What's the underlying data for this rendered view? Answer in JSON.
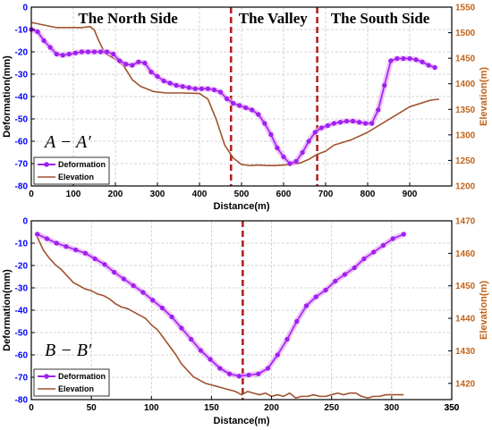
{
  "colors": {
    "deformation": "#a020f0",
    "deformation_glow": "#e6a8f5",
    "elevation": "#a0522d",
    "divider": "#b22222",
    "left_axis": "#0000ff",
    "right_axis": "#c0631a",
    "grid": "#c8c8c8"
  },
  "chart_data": [
    {
      "id": "AA",
      "type": "line",
      "section_label": "A − A′",
      "xlabel": "Distance(m)",
      "ylabel_left": "Deformation(mm)",
      "ylabel_right": "Elevation(m)",
      "xlim": [
        0,
        1000
      ],
      "ylim_left": [
        -80,
        0
      ],
      "ylim_right": [
        1200,
        1550
      ],
      "xticks": [
        0,
        100,
        200,
        300,
        400,
        500,
        600,
        700,
        800,
        900
      ],
      "yticks_left": [
        0,
        -10,
        -20,
        -30,
        -40,
        -50,
        -60,
        -70,
        -80
      ],
      "yticks_right": [
        1200,
        1250,
        1300,
        1350,
        1400,
        1450,
        1500,
        1550
      ],
      "grid": true,
      "legend": {
        "position": "bottom-left",
        "entries": [
          "Deformation",
          "Elevation"
        ]
      },
      "region_labels": [
        {
          "text": "The North Side",
          "x": 230
        },
        {
          "text": "The Valley",
          "x": 575
        },
        {
          "text": "The South Side",
          "x": 830
        }
      ],
      "dividers": [
        475,
        680
      ],
      "series": [
        {
          "name": "Deformation",
          "axis": "left",
          "x": [
            0,
            15,
            30,
            45,
            60,
            75,
            90,
            105,
            120,
            135,
            150,
            165,
            180,
            195,
            210,
            225,
            240,
            255,
            270,
            285,
            300,
            315,
            330,
            345,
            360,
            375,
            390,
            405,
            420,
            435,
            450,
            465,
            480,
            495,
            510,
            525,
            540,
            555,
            570,
            585,
            600,
            615,
            630,
            645,
            660,
            675,
            690,
            705,
            720,
            735,
            750,
            765,
            780,
            795,
            810,
            825,
            840,
            855,
            870,
            885,
            900,
            915,
            930,
            945,
            960
          ],
          "values": [
            -10,
            -11,
            -15,
            -18,
            -21,
            -21.5,
            -21,
            -20.5,
            -20,
            -20,
            -20,
            -20,
            -20,
            -21,
            -24,
            -25.5,
            -26,
            -24.5,
            -25,
            -29,
            -31,
            -33,
            -34,
            -35,
            -35.5,
            -36,
            -36.5,
            -36.5,
            -36.5,
            -37,
            -38,
            -41,
            -43,
            -44,
            -45,
            -46,
            -48,
            -52,
            -57,
            -63,
            -67,
            -70,
            -69,
            -65,
            -60,
            -56,
            -54,
            -53,
            -52,
            -51.5,
            -51,
            -51,
            -51.5,
            -52,
            -52,
            -46,
            -35,
            -24,
            -23,
            -23,
            -23,
            -23.5,
            -24.5,
            -26,
            -27
          ]
        },
        {
          "name": "Elevation",
          "axis": "right",
          "x": [
            0,
            30,
            60,
            90,
            120,
            140,
            150,
            160,
            175,
            200,
            220,
            240,
            260,
            290,
            320,
            360,
            400,
            420,
            440,
            460,
            480,
            500,
            520,
            540,
            560,
            580,
            600,
            620,
            640,
            660,
            680,
            700,
            720,
            760,
            800,
            850,
            900,
            950,
            970
          ],
          "values": [
            1520,
            1515,
            1510,
            1510,
            1510,
            1512,
            1505,
            1485,
            1460,
            1448,
            1435,
            1408,
            1395,
            1385,
            1382,
            1382,
            1381,
            1370,
            1330,
            1280,
            1255,
            1242,
            1240,
            1241,
            1240,
            1240,
            1241,
            1242,
            1245,
            1252,
            1262,
            1268,
            1280,
            1290,
            1305,
            1330,
            1355,
            1368,
            1370
          ]
        }
      ]
    },
    {
      "id": "BB",
      "type": "line",
      "section_label": "B − B′",
      "xlabel": "Distance(m)",
      "ylabel_left": "Deformation(mm)",
      "ylabel_right": "Elevation(m)",
      "xlim": [
        0,
        350
      ],
      "ylim_left": [
        -80,
        0
      ],
      "ylim_right": [
        1415,
        1470
      ],
      "xticks": [
        0,
        50,
        100,
        150,
        200,
        250,
        300,
        350
      ],
      "yticks_left": [
        0,
        -10,
        -20,
        -30,
        -40,
        -50,
        -60,
        -70,
        -80
      ],
      "yticks_right": [
        1420,
        1430,
        1440,
        1450,
        1460,
        1470
      ],
      "grid": true,
      "legend": {
        "position": "bottom-left",
        "entries": [
          "Deformation",
          "Elevation"
        ]
      },
      "dividers": [
        176
      ],
      "series": [
        {
          "name": "Deformation",
          "axis": "left",
          "x": [
            5,
            13,
            21,
            29,
            37,
            45,
            53,
            61,
            69,
            77,
            85,
            93,
            101,
            109,
            117,
            125,
            133,
            141,
            149,
            157,
            165,
            173,
            181,
            189,
            197,
            205,
            213,
            221,
            229,
            237,
            245,
            253,
            261,
            269,
            277,
            285,
            293,
            301,
            310
          ],
          "values": [
            -6,
            -8,
            -10,
            -11.5,
            -13,
            -14.5,
            -17,
            -19.5,
            -23,
            -26,
            -29,
            -32,
            -35.5,
            -39,
            -43,
            -48,
            -53,
            -58,
            -62,
            -66,
            -68.5,
            -69.5,
            -69,
            -68.5,
            -66,
            -60,
            -53,
            -45,
            -38,
            -34,
            -31,
            -27,
            -24,
            -21,
            -17,
            -14,
            -11,
            -8,
            -6
          ]
        },
        {
          "name": "Elevation",
          "axis": "right",
          "x": [
            5,
            10,
            15,
            20,
            25,
            30,
            35,
            40,
            45,
            50,
            55,
            60,
            65,
            70,
            75,
            80,
            85,
            90,
            95,
            100,
            105,
            110,
            115,
            120,
            125,
            130,
            135,
            140,
            145,
            150,
            155,
            160,
            165,
            170,
            175,
            180,
            185,
            190,
            195,
            200,
            205,
            210,
            215,
            220,
            225,
            230,
            235,
            240,
            245,
            250,
            255,
            260,
            265,
            270,
            275,
            280,
            285,
            290,
            295,
            300,
            305,
            310
          ],
          "values": [
            1465,
            1461,
            1458.5,
            1456.5,
            1455,
            1453,
            1451,
            1450,
            1449,
            1448.5,
            1447.5,
            1447,
            1446,
            1444.5,
            1443.5,
            1443,
            1442,
            1441,
            1440,
            1438,
            1436.5,
            1434,
            1431.5,
            1429,
            1426,
            1424,
            1422,
            1421,
            1420,
            1419.5,
            1419,
            1418.5,
            1418,
            1417.5,
            1416.5,
            1417.5,
            1417,
            1416.5,
            1417,
            1416,
            1416.5,
            1416,
            1417,
            1415.5,
            1416,
            1416,
            1416.5,
            1416,
            1416,
            1416.5,
            1417,
            1416.5,
            1417,
            1417,
            1416,
            1415.5,
            1416,
            1416,
            1416.5,
            1416.5,
            1416.5,
            1416.5
          ]
        }
      ]
    }
  ]
}
